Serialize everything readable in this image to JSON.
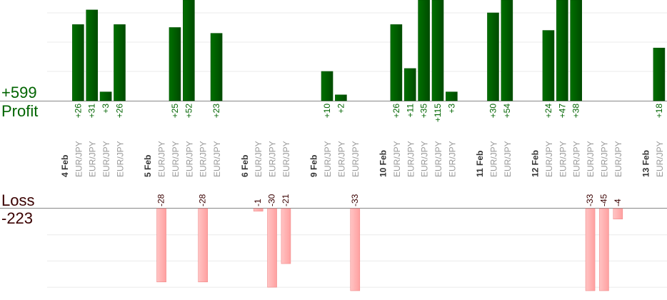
{
  "chart_data": {
    "type": "bar",
    "title": "",
    "profit": {
      "label": "Profit",
      "total": "+599",
      "color": "#006400",
      "ylim": [
        0,
        34
      ],
      "grid_step": 10
    },
    "loss": {
      "label": "Loss",
      "total": "-223",
      "color": "#ffb0b0",
      "ylim": [
        -31,
        0
      ],
      "grid_step": 10
    },
    "columns": [
      {
        "date": "4 Feb"
      },
      {
        "symbol": "EUR/JPY",
        "value": 26,
        "label": "+26"
      },
      {
        "symbol": "EUR/JPY",
        "value": 31,
        "label": "+31"
      },
      {
        "symbol": "EUR/JPY",
        "value": 3,
        "label": "+3"
      },
      {
        "symbol": "EUR/JPY",
        "value": 26,
        "label": "+26"
      },
      {},
      {
        "date": "5 Feb"
      },
      {
        "symbol": "EUR/JPY",
        "value": -28,
        "label": "-28"
      },
      {
        "symbol": "EUR/JPY",
        "value": 25,
        "label": "+25"
      },
      {
        "symbol": "EUR/JPY",
        "value": 52,
        "label": "+52"
      },
      {
        "symbol": "EUR/JPY",
        "value": -28,
        "label": "-28"
      },
      {
        "symbol": "EUR/JPY",
        "value": 23,
        "label": "+23"
      },
      {},
      {
        "date": "6 Feb"
      },
      {
        "symbol": "EUR/JPY",
        "value": -1,
        "label": "-1"
      },
      {
        "symbol": "EUR/JPY",
        "value": -30,
        "label": "-30"
      },
      {
        "symbol": "EUR/JPY",
        "value": -21,
        "label": "-21"
      },
      {},
      {
        "date": "9 Feb"
      },
      {
        "symbol": "EUR/JPY",
        "value": 10,
        "label": "+10"
      },
      {
        "symbol": "EUR/JPY",
        "value": 2,
        "label": "+2"
      },
      {
        "symbol": "EUR/JPY",
        "value": -33,
        "label": "-33"
      },
      {},
      {
        "date": "10 Feb"
      },
      {
        "symbol": "EUR/JPY",
        "value": 26,
        "label": "+26"
      },
      {
        "symbol": "EUR/JPY",
        "value": 11,
        "label": "+11"
      },
      {
        "symbol": "EUR/JPY",
        "value": 35,
        "label": "+35"
      },
      {
        "symbol": "EUR/JPY",
        "value": 115,
        "label": "+115"
      },
      {
        "symbol": "EUR/JPY",
        "value": 3,
        "label": "+3"
      },
      {},
      {
        "date": "11 Feb"
      },
      {
        "symbol": "EUR/JPY",
        "value": 30,
        "label": "+30"
      },
      {
        "symbol": "EUR/JPY",
        "value": 54,
        "label": "+54"
      },
      {},
      {
        "date": "12 Feb"
      },
      {
        "symbol": "EUR/JPY",
        "value": 24,
        "label": "+24"
      },
      {
        "symbol": "EUR/JPY",
        "value": 47,
        "label": "+47"
      },
      {
        "symbol": "EUR/JPY",
        "value": 38,
        "label": "+38"
      },
      {
        "symbol": "EUR/JPY",
        "value": -33,
        "label": "-33"
      },
      {
        "symbol": "EUR/JPY",
        "value": -45,
        "label": "-45"
      },
      {
        "symbol": "EUR/JPY",
        "value": -4,
        "label": "-4"
      },
      {},
      {
        "date": "13 Feb"
      },
      {
        "symbol": "EUR/JPY",
        "value": 18,
        "label": "+18"
      }
    ]
  }
}
